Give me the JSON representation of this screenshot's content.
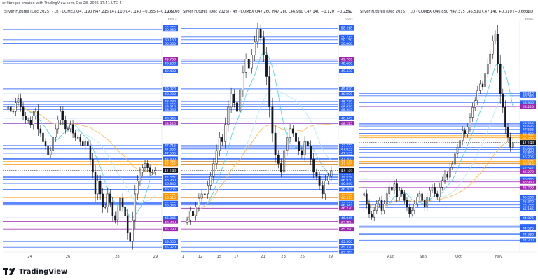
{
  "header": {
    "credit": "erikbregar created with TradingView.com, Oct 28, 2025 17:41 UTC-4"
  },
  "footer": {
    "brand": "TradingView"
  },
  "colors": {
    "level_blue": "#2962ff",
    "level_magenta": "#9c27b0",
    "level_orange": "#ff9800",
    "ma_cyan": "#4dd0e1",
    "ma_light": "#b2ebf2",
    "ma_orange": "#ffb74d",
    "candle": "#131722",
    "current_price": "#131722"
  },
  "chart_data": [
    {
      "type": "candlestick",
      "title": "Silver Futures (Dec 2025) · 1h · COMEX  O47.190 H47.215 L47.110 C47.140 −0.055 (−0.12%) Vol...",
      "currency": "USD",
      "unit_label": "600G",
      "ylim": [
        45.26,
        50.55
      ],
      "x_ticks": [
        "24",
        "26",
        "28",
        "29"
      ],
      "x_tick_pos": [
        0.17,
        0.41,
        0.72,
        0.96
      ],
      "current_price": "47.140",
      "blue_levels": [
        "50.445",
        "50.385",
        "50.150",
        "50.060",
        "49.700",
        "49.660",
        "49.600",
        "49.430",
        "49.020",
        "48.900",
        "48.730",
        "48.660",
        "48.610",
        "48.545",
        "48.345",
        "48.225",
        "47.715",
        "47.635",
        "47.535",
        "47.415",
        "47.400",
        "46.990",
        "46.975",
        "46.930",
        "46.840",
        "46.705",
        "46.395",
        "46.380",
        "46.345",
        "46.045",
        "45.500",
        "45.370"
      ],
      "magenta_levels": [
        "49.700",
        "48.225",
        "45.960",
        "45.790"
      ],
      "orange_levels": [
        "47.345",
        "47.285",
        "46.575",
        "46.515"
      ],
      "closes": [
        48.6,
        48.5,
        48.5,
        48.7,
        48.8,
        48.6,
        48.4,
        48.3,
        48.3,
        48.2,
        48.4,
        48.5,
        48.1,
        48.0,
        47.8,
        47.7,
        47.5,
        47.6,
        47.9,
        48.1,
        48.3,
        48.5,
        48.3,
        48.1,
        48.1,
        48.2,
        48.0,
        47.9,
        47.9,
        47.8,
        47.7,
        47.8,
        47.7,
        47.4,
        47.1,
        46.6,
        46.9,
        46.6,
        46.3,
        46.3,
        46.6,
        46.4,
        46.1,
        46.0,
        46.2,
        46.5,
        46.3,
        46.1,
        45.7,
        45.5,
        46.0,
        46.6,
        46.9,
        47.1,
        47.2,
        47.3,
        47.2,
        47.1,
        47.1,
        47.14
      ]
    },
    {
      "type": "candlestick",
      "title": "Silver Futures (Dec 2025) · 4h · COMEX  O47.260 H47.280 L46.960 C47.140 −0.120 (−0.25%)",
      "currency": "USD",
      "unit_label": "600G",
      "ylim": [
        45.26,
        50.55
      ],
      "x_ticks": [
        "1",
        "12",
        "15",
        "17",
        "21",
        "23",
        "26",
        "29"
      ],
      "x_tick_pos": [
        0.01,
        0.12,
        0.24,
        0.35,
        0.52,
        0.65,
        0.77,
        0.95
      ],
      "current_price": "47.140",
      "blue_levels": [
        "50.445",
        "50.410",
        "50.215",
        "50.150",
        "50.060",
        "49.700",
        "49.660",
        "49.600",
        "49.430",
        "49.020",
        "48.900",
        "48.730",
        "48.660",
        "48.610",
        "48.545",
        "48.345",
        "48.225",
        "47.715",
        "47.680",
        "47.635",
        "47.535",
        "47.415",
        "47.400",
        "47.345",
        "47.285",
        "47.040",
        "46.990",
        "46.975",
        "46.930",
        "46.840",
        "46.705",
        "46.575",
        "46.515",
        "46.395",
        "46.380",
        "46.345",
        "46.045",
        "45.500",
        "45.370",
        "45.265"
      ],
      "magenta_levels": [
        "49.700",
        "48.225",
        "46.270",
        "45.960",
        "45.790"
      ],
      "orange_levels": [
        "47.345",
        "47.285",
        "46.575",
        "46.515"
      ],
      "closes": [
        46.0,
        46.2,
        46.1,
        46.3,
        46.5,
        46.6,
        46.6,
        46.8,
        47.0,
        47.3,
        47.6,
        47.9,
        47.8,
        48.2,
        48.6,
        48.9,
        48.7,
        48.5,
        49.0,
        49.4,
        49.7,
        49.5,
        49.8,
        50.1,
        50.4,
        50.2,
        49.8,
        49.3,
        48.6,
        48.0,
        47.5,
        47.3,
        47.1,
        47.6,
        47.9,
        48.1,
        48.0,
        47.8,
        47.6,
        47.5,
        47.8,
        47.7,
        47.4,
        47.1,
        47.0,
        46.8,
        46.6,
        46.9,
        47.0,
        47.14
      ]
    },
    {
      "type": "candlestick",
      "title": "Silver Futures (Dec 2025) · 1D · COMEX  O46.850 H47.375 L45.510 C47.140 +0.310 (+0.66%)",
      "currency": "USD",
      "unit_label": "600G",
      "ylim": [
        43.85,
        50.75
      ],
      "x_ticks": [
        "Aug",
        "Sep",
        "Oct",
        "Nov"
      ],
      "x_tick_pos": [
        0.2,
        0.4,
        0.62,
        0.87
      ],
      "current_price": "47.140",
      "blue_levels": [
        "48.610",
        "48.545",
        "48.345",
        "48.225",
        "47.715",
        "47.680",
        "47.635",
        "47.535",
        "47.415",
        "47.400",
        "46.990",
        "46.975",
        "46.930",
        "46.840",
        "46.705",
        "46.515",
        "46.395",
        "46.380",
        "46.345",
        "46.045",
        "45.500",
        "45.370",
        "45.265",
        "45.190",
        "45.145",
        "44.875",
        "44.625",
        "44.585",
        "44.575",
        "44.400",
        "44.380",
        "44.200"
      ],
      "magenta_levels": [
        "48.225",
        "46.270",
        "45.960",
        "45.790"
      ],
      "orange_levels": [
        "47.345",
        "47.285",
        "46.575",
        "46.515"
      ],
      "closes": [
        45.6,
        45.3,
        45.0,
        44.9,
        45.1,
        45.3,
        45.4,
        45.1,
        45.3,
        45.6,
        45.8,
        45.7,
        45.9,
        45.5,
        45.7,
        45.6,
        45.4,
        45.2,
        45.0,
        45.1,
        45.3,
        45.5,
        45.6,
        45.4,
        45.2,
        45.5,
        45.7,
        45.8,
        45.6,
        45.5,
        45.8,
        46.0,
        46.2,
        46.1,
        46.4,
        46.5,
        46.8,
        47.0,
        47.2,
        47.5,
        47.4,
        47.6,
        47.9,
        48.2,
        48.4,
        48.7,
        48.9,
        48.8,
        49.2,
        49.5,
        49.8,
        50.2,
        50.4,
        49.5,
        48.6,
        48.2,
        47.6,
        47.3,
        47.0,
        47.14
      ]
    }
  ]
}
